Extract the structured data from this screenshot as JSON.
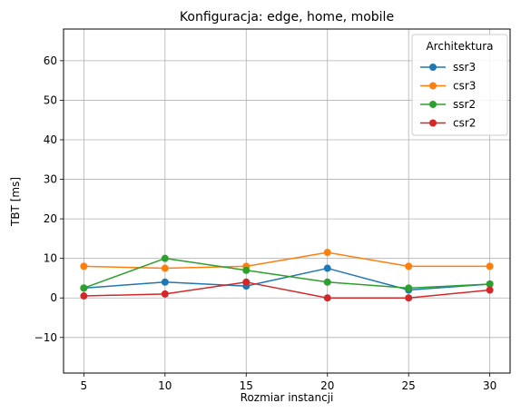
{
  "chart_data": {
    "type": "line",
    "title": "Konfiguracja: edge, home, mobile",
    "xlabel": "Rozmiar instancji",
    "ylabel": "TBT [ms]",
    "x": [
      5,
      10,
      15,
      20,
      25,
      30
    ],
    "x_ticks": [
      5,
      10,
      15,
      20,
      25,
      30
    ],
    "y_ticks": [
      -10,
      0,
      10,
      20,
      30,
      40,
      50,
      60
    ],
    "xlim": [
      3.75,
      31.25
    ],
    "ylim": [
      -19,
      68
    ],
    "grid": true,
    "legend": {
      "title": "Architektura",
      "placement": "top-right"
    },
    "series": [
      {
        "name": "ssr3",
        "color": "#1f77b4",
        "values": [
          2.5,
          4,
          3,
          7.5,
          2,
          3.5
        ]
      },
      {
        "name": "csr3",
        "color": "#ff7f0e",
        "values": [
          8,
          7.5,
          8,
          11.5,
          8,
          8
        ]
      },
      {
        "name": "ssr2",
        "color": "#2ca02c",
        "values": [
          2.5,
          10,
          7,
          4,
          2.5,
          3.5
        ]
      },
      {
        "name": "csr2",
        "color": "#d62728",
        "values": [
          0.5,
          1,
          4,
          0,
          0,
          2
        ]
      }
    ]
  }
}
